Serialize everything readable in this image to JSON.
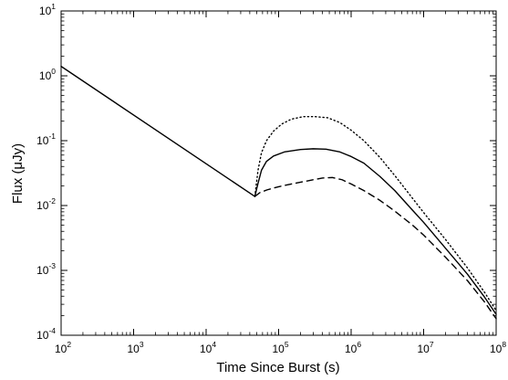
{
  "chart_data": {
    "type": "line",
    "xlabel": "Time Since Burst (s)",
    "ylabel": "Flux (μJy)",
    "x_scale": "log",
    "y_scale": "log",
    "xlim": [
      100,
      100000000
    ],
    "ylim": [
      0.0001,
      10
    ],
    "grid": false,
    "x_ticks": [
      {
        "value": 100,
        "base": "10",
        "exp": "2"
      },
      {
        "value": 1000,
        "base": "10",
        "exp": "3"
      },
      {
        "value": 10000,
        "base": "10",
        "exp": "4"
      },
      {
        "value": 100000,
        "base": "10",
        "exp": "5"
      },
      {
        "value": 1000000,
        "base": "10",
        "exp": "6"
      },
      {
        "value": 10000000,
        "base": "10",
        "exp": "7"
      },
      {
        "value": 100000000,
        "base": "10",
        "exp": "8"
      }
    ],
    "y_ticks": [
      {
        "value": 0.0001,
        "base": "10",
        "exp": "-4"
      },
      {
        "value": 0.001,
        "base": "10",
        "exp": "-3"
      },
      {
        "value": 0.01,
        "base": "10",
        "exp": "-2"
      },
      {
        "value": 0.1,
        "base": "10",
        "exp": "-1"
      },
      {
        "value": 1,
        "base": "10",
        "exp": "0"
      },
      {
        "value": 10,
        "base": "10",
        "exp": "1"
      }
    ],
    "series": [
      {
        "style": "solid",
        "points": [
          [
            100,
            1.4
          ],
          [
            47000,
            0.0138
          ],
          [
            52000,
            0.022
          ],
          [
            58000,
            0.035
          ],
          [
            68000,
            0.048
          ],
          [
            85000,
            0.058
          ],
          [
            120000,
            0.067
          ],
          [
            200000,
            0.073
          ],
          [
            300000,
            0.075
          ],
          [
            450000,
            0.074
          ],
          [
            700000,
            0.067
          ],
          [
            1000000,
            0.057
          ],
          [
            1500000,
            0.045
          ],
          [
            2500000,
            0.028
          ],
          [
            4000000,
            0.017
          ],
          [
            7000000,
            0.0085
          ],
          [
            10000000,
            0.0055
          ],
          [
            20000000,
            0.0022
          ],
          [
            40000000,
            0.00088
          ],
          [
            70000000,
            0.00038
          ],
          [
            100000000,
            0.00021
          ]
        ]
      },
      {
        "style": "dotted",
        "points": [
          [
            47000,
            0.0138
          ],
          [
            52000,
            0.035
          ],
          [
            58000,
            0.065
          ],
          [
            68000,
            0.1
          ],
          [
            85000,
            0.14
          ],
          [
            110000,
            0.18
          ],
          [
            150000,
            0.215
          ],
          [
            220000,
            0.235
          ],
          [
            320000,
            0.235
          ],
          [
            480000,
            0.225
          ],
          [
            700000,
            0.19
          ],
          [
            1000000,
            0.145
          ],
          [
            1500000,
            0.1
          ],
          [
            2500000,
            0.055
          ],
          [
            4000000,
            0.029
          ],
          [
            7000000,
            0.013
          ],
          [
            10000000,
            0.0078
          ],
          [
            20000000,
            0.003
          ],
          [
            40000000,
            0.0011
          ],
          [
            70000000,
            0.00045
          ],
          [
            100000000,
            0.00024
          ]
        ]
      },
      {
        "style": "dashed",
        "points": [
          [
            47000,
            0.0138
          ],
          [
            55000,
            0.0158
          ],
          [
            70000,
            0.0175
          ],
          [
            100000,
            0.0195
          ],
          [
            150000,
            0.0215
          ],
          [
            250000,
            0.024
          ],
          [
            400000,
            0.0265
          ],
          [
            550000,
            0.027
          ],
          [
            750000,
            0.025
          ],
          [
            1000000,
            0.0215
          ],
          [
            1500000,
            0.017
          ],
          [
            2500000,
            0.012
          ],
          [
            4000000,
            0.0082
          ],
          [
            7000000,
            0.005
          ],
          [
            10000000,
            0.0035
          ],
          [
            20000000,
            0.0016
          ],
          [
            40000000,
            0.0007
          ],
          [
            70000000,
            0.00032
          ],
          [
            100000000,
            0.00018
          ]
        ]
      }
    ]
  }
}
